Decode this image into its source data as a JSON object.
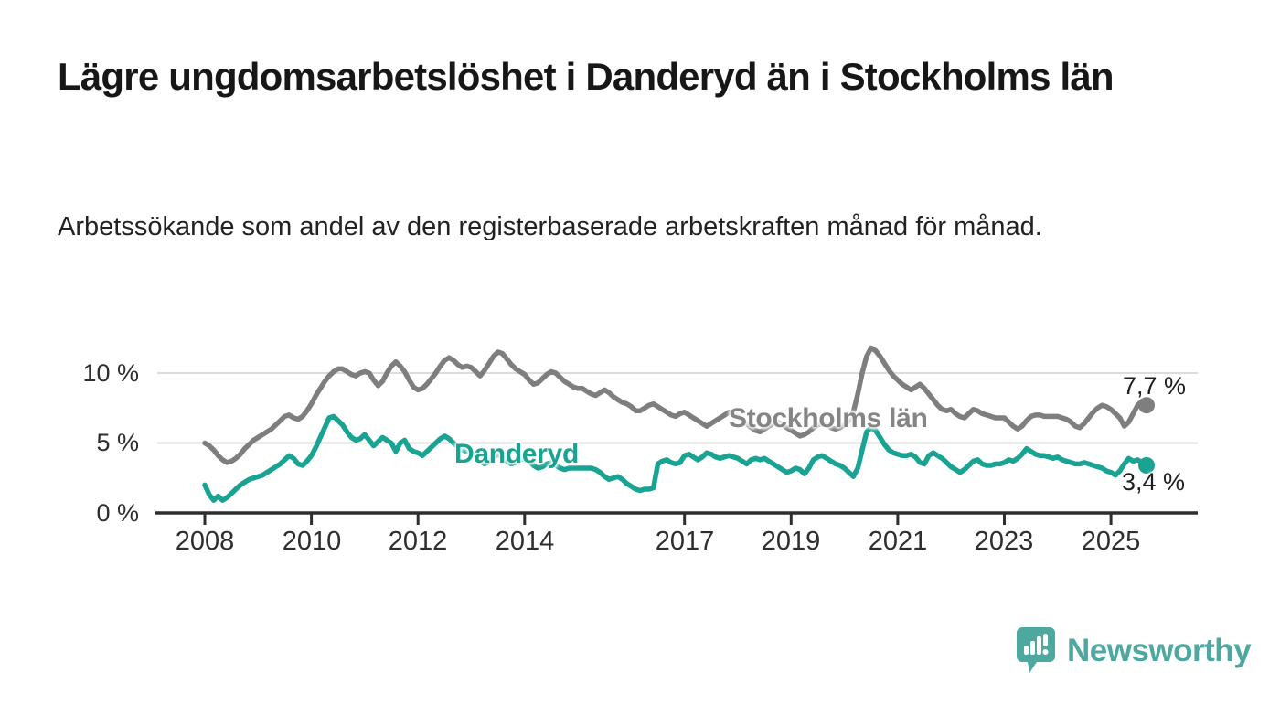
{
  "header": {
    "title": "Lägre ungdomsarbetslöshet i Danderyd än i Stockholms län",
    "subtitle": "Arbetssökande som andel av den registerbaserade arbetskraften månad för månad."
  },
  "footer": {
    "brand": "Newsworthy"
  },
  "colors": {
    "danderyd": "#18A393",
    "stockholm": "#7E7E7E",
    "stockholm_label": "#858585",
    "axis": "#2e2e2e",
    "grid": "#dcdcdc",
    "text": "#171717",
    "brand": "#4FA8A0"
  },
  "chart_data": {
    "type": "line",
    "title": "Lägre ungdomsarbetslöshet i Danderyd än i Stockholms län",
    "subtitle": "Arbetssökande som andel av den registerbaserade arbetskraften månad för månad.",
    "x_unit": "month",
    "x_start_year": 2008,
    "x_end_label_period": "2025",
    "xlabel": "",
    "ylabel": "",
    "grid": "horizontal",
    "legend_position": "inline-labels",
    "ylim": [
      0,
      12.5
    ],
    "y_tick_values": [
      10,
      5,
      0
    ],
    "y_tick_labels": [
      "10 %",
      "5 %",
      "0 %"
    ],
    "x_tick_years": [
      2008,
      2010,
      2012,
      2014,
      2017,
      2019,
      2021,
      2023,
      2025
    ],
    "x_tick_labels": [
      "2008",
      "2010",
      "2012",
      "2014",
      "2017",
      "2019",
      "2021",
      "2023",
      "2025"
    ],
    "series": [
      {
        "name": "Stockholms län",
        "color": "#7E7E7E",
        "end_label": "7,7 %",
        "end_value": 7.7,
        "values": [
          5.0,
          4.8,
          4.5,
          4.1,
          3.8,
          3.6,
          3.7,
          3.9,
          4.2,
          4.6,
          4.9,
          5.2,
          5.4,
          5.6,
          5.8,
          6.0,
          6.3,
          6.6,
          6.9,
          7.0,
          6.8,
          6.7,
          6.9,
          7.3,
          7.8,
          8.4,
          8.9,
          9.4,
          9.8,
          10.1,
          10.3,
          10.3,
          10.1,
          9.9,
          9.8,
          10.0,
          10.1,
          10.0,
          9.5,
          9.1,
          9.4,
          10.0,
          10.5,
          10.8,
          10.5,
          10.1,
          9.5,
          9.0,
          8.8,
          8.9,
          9.2,
          9.6,
          10.0,
          10.5,
          10.9,
          11.1,
          10.9,
          10.6,
          10.4,
          10.5,
          10.4,
          10.1,
          9.8,
          10.2,
          10.7,
          11.2,
          11.5,
          11.4,
          11.0,
          10.6,
          10.3,
          10.1,
          9.9,
          9.5,
          9.2,
          9.3,
          9.6,
          9.9,
          10.1,
          10.0,
          9.7,
          9.4,
          9.2,
          9.0,
          8.9,
          8.9,
          8.7,
          8.5,
          8.4,
          8.6,
          8.8,
          8.6,
          8.3,
          8.1,
          7.9,
          7.8,
          7.6,
          7.3,
          7.3,
          7.5,
          7.7,
          7.8,
          7.6,
          7.4,
          7.2,
          7.0,
          6.9,
          7.1,
          7.2,
          7.0,
          6.8,
          6.6,
          6.4,
          6.2,
          6.4,
          6.6,
          6.8,
          7.0,
          7.2,
          7.1,
          6.9,
          6.6,
          6.4,
          6.1,
          5.9,
          5.8,
          6.0,
          6.2,
          6.4,
          6.5,
          6.3,
          6.1,
          5.9,
          5.7,
          5.5,
          5.6,
          5.8,
          6.1,
          6.3,
          6.4,
          6.3,
          6.1,
          6.0,
          6.1,
          6.3,
          6.6,
          7.2,
          8.5,
          10.0,
          11.2,
          11.8,
          11.6,
          11.2,
          10.7,
          10.2,
          9.8,
          9.5,
          9.2,
          9.0,
          8.8,
          9.0,
          9.2,
          8.9,
          8.5,
          8.1,
          7.7,
          7.4,
          7.3,
          7.4,
          7.1,
          6.9,
          6.8,
          7.1,
          7.4,
          7.3,
          7.1,
          7.0,
          6.9,
          6.8,
          6.8,
          6.8,
          6.5,
          6.2,
          6.0,
          6.2,
          6.6,
          6.9,
          7.0,
          7.0,
          6.9,
          6.9,
          6.9,
          6.9,
          6.8,
          6.7,
          6.5,
          6.2,
          6.1,
          6.4,
          6.8,
          7.2,
          7.5,
          7.7,
          7.6,
          7.4,
          7.1,
          6.8,
          6.2,
          6.5,
          7.1,
          7.7,
          8.0,
          7.7
        ]
      },
      {
        "name": "Danderyd",
        "color": "#18A393",
        "end_label": "3,4 %",
        "end_value": 3.4,
        "values": [
          2.0,
          1.3,
          0.9,
          1.2,
          0.9,
          1.1,
          1.4,
          1.7,
          2.0,
          2.2,
          2.4,
          2.5,
          2.6,
          2.7,
          2.9,
          3.1,
          3.3,
          3.5,
          3.8,
          4.1,
          3.9,
          3.5,
          3.4,
          3.7,
          4.1,
          4.7,
          5.4,
          6.1,
          6.8,
          6.9,
          6.6,
          6.3,
          5.8,
          5.4,
          5.2,
          5.3,
          5.6,
          5.2,
          4.8,
          5.1,
          5.4,
          5.2,
          5.0,
          4.4,
          5.0,
          5.2,
          4.6,
          4.4,
          4.3,
          4.1,
          4.4,
          4.7,
          5.0,
          5.3,
          5.5,
          5.3,
          5.0,
          4.7,
          4.5,
          4.4,
          4.3,
          4.0,
          3.7,
          3.5,
          3.7,
          4.0,
          4.2,
          4.0,
          3.7,
          3.5,
          3.6,
          3.8,
          3.9,
          3.7,
          3.4,
          3.2,
          3.3,
          3.5,
          3.6,
          3.4,
          3.2,
          3.1,
          3.2,
          3.2,
          3.2,
          3.2,
          3.2,
          3.2,
          3.1,
          2.9,
          2.6,
          2.4,
          2.5,
          2.6,
          2.4,
          2.1,
          1.9,
          1.7,
          1.6,
          1.7,
          1.7,
          1.8,
          3.5,
          3.7,
          3.8,
          3.6,
          3.5,
          3.6,
          4.1,
          4.2,
          4.0,
          3.8,
          4.0,
          4.3,
          4.2,
          4.0,
          3.9,
          4.0,
          4.1,
          4.0,
          3.9,
          3.7,
          3.5,
          3.8,
          3.9,
          3.8,
          3.9,
          3.7,
          3.5,
          3.3,
          3.1,
          2.9,
          3.0,
          3.2,
          3.1,
          2.8,
          3.2,
          3.8,
          4.0,
          4.1,
          3.9,
          3.7,
          3.5,
          3.4,
          3.2,
          2.9,
          2.6,
          3.2,
          4.5,
          5.8,
          6.1,
          5.9,
          5.4,
          4.9,
          4.5,
          4.3,
          4.2,
          4.1,
          4.1,
          4.2,
          4.0,
          3.6,
          3.5,
          4.1,
          4.3,
          4.1,
          3.9,
          3.6,
          3.3,
          3.1,
          2.9,
          3.1,
          3.4,
          3.7,
          3.8,
          3.5,
          3.4,
          3.4,
          3.5,
          3.5,
          3.6,
          3.8,
          3.7,
          3.9,
          4.2,
          4.6,
          4.4,
          4.2,
          4.1,
          4.1,
          4.0,
          3.9,
          4.0,
          3.8,
          3.7,
          3.6,
          3.5,
          3.5,
          3.6,
          3.5,
          3.4,
          3.3,
          3.2,
          3.0,
          2.9,
          2.7,
          3.0,
          3.5,
          3.9,
          3.7,
          3.8,
          3.6,
          3.4
        ]
      }
    ]
  }
}
